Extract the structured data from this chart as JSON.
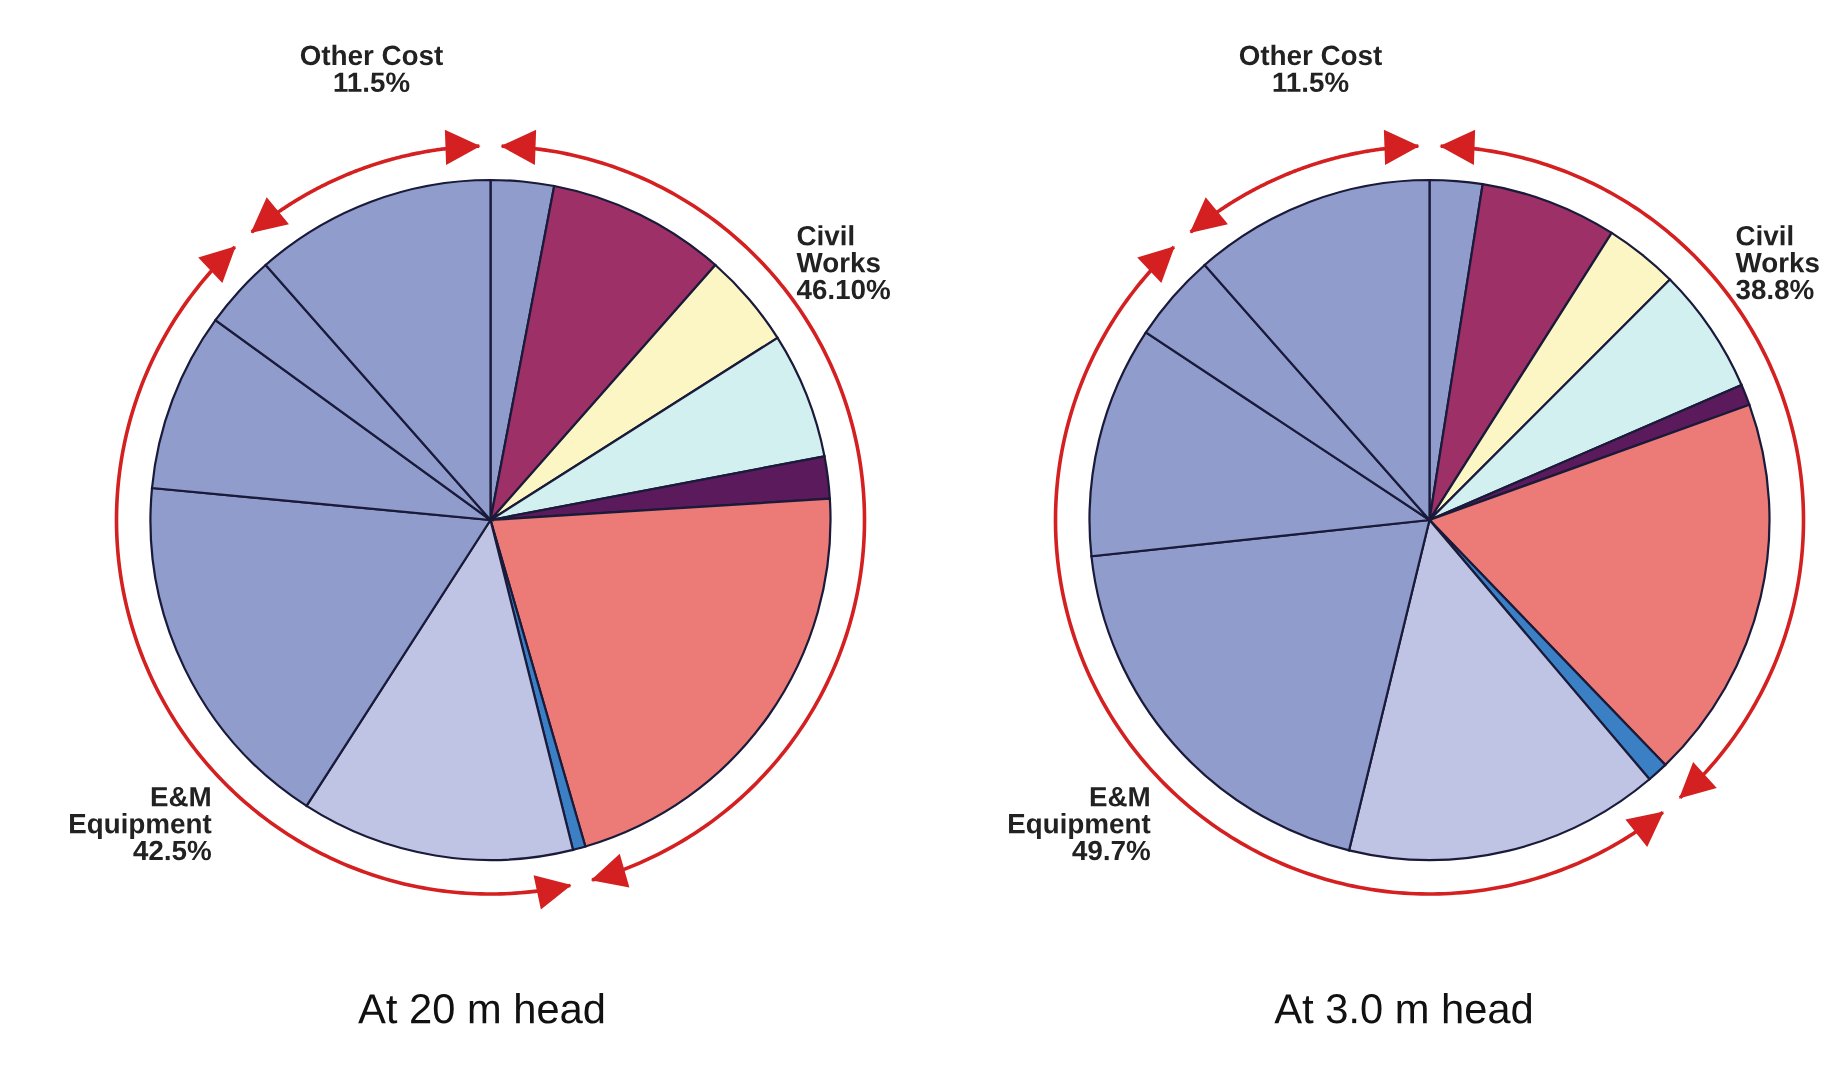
{
  "chart_data": [
    {
      "type": "pie",
      "title": "At 20 m head",
      "categories": [
        null,
        null,
        null,
        null,
        null,
        null,
        null,
        null,
        null,
        null,
        null,
        null
      ],
      "values": [
        3,
        8.5,
        4.5,
        6,
        2,
        21.5,
        0.6,
        13,
        17.4,
        8.5,
        3.5,
        11.5
      ],
      "colors": [
        "#8f9ccc",
        "#9e3068",
        "#fbf6c4",
        "#d3f0f0",
        "#5a1a5c",
        "#ec7b78",
        "#3b7fc4",
        "#c0c4e4",
        "#8f9ccc",
        "#8f9ccc",
        "#8f9ccc",
        "#8f9ccc"
      ],
      "annotations": [
        "Other Cost\n11.5%",
        "Civil\nWorks\n46.10%",
        "E&M\nEquipment\n42.5%"
      ]
    },
    {
      "type": "pie",
      "title": "At 3.0 m head",
      "categories": [
        null,
        null,
        null,
        null,
        null,
        null,
        null,
        null,
        null,
        null,
        null,
        null
      ],
      "values": [
        2.5,
        6.5,
        3.5,
        6,
        1,
        18.3,
        1,
        15,
        19.5,
        11,
        4.2,
        11.5
      ],
      "colors": [
        "#8f9ccc",
        "#9e3068",
        "#fbf6c4",
        "#d3f0f0",
        "#5a1a5c",
        "#ec7b78",
        "#3b7fc4",
        "#c0c4e4",
        "#8f9ccc",
        "#8f9ccc",
        "#8f9ccc",
        "#8f9ccc"
      ],
      "annotations": [
        "Other Cost\n11.5%",
        "Civil\nWorks\n38.8%",
        "E&M\nEquipment\n49.7%"
      ]
    }
  ]
}
